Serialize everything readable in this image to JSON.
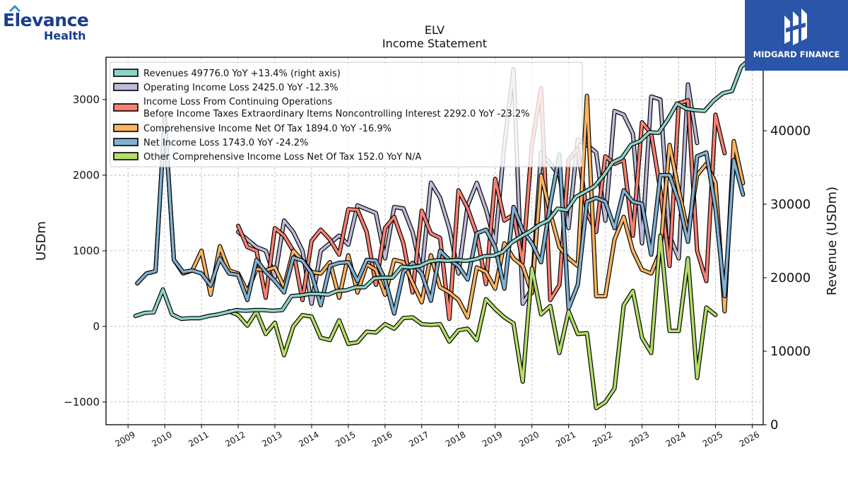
{
  "brand": {
    "company_line1": "Elevance",
    "company_line2": "Health",
    "partner_name": "MIDGARD FINANCE"
  },
  "colors": {
    "revenues": "#8dd3c7",
    "operating": "#bebada",
    "pretax": "#fb8072",
    "comprehensive": "#fdb462",
    "net": "#80b1d3",
    "other_comp": "#b3de69",
    "brand_blue": "#1a3d8f",
    "partner_bg": "#2a55a8"
  },
  "chart_data": {
    "type": "line",
    "title": "ELV",
    "subtitle": "Income Statement",
    "ylabel": "USDm",
    "y2label": "Revenue (USDm)",
    "ylim": [
      -1300,
      3560
    ],
    "y2lim": [
      0,
      50000
    ],
    "xlim": [
      2008.4,
      2026.3
    ],
    "xticks": [
      "2009",
      "2010",
      "2011",
      "2012",
      "2013",
      "2014",
      "2015",
      "2016",
      "2017",
      "2018",
      "2019",
      "2020",
      "2021",
      "2022",
      "2023",
      "2024",
      "2025",
      "2026"
    ],
    "yticks": [
      "-1000",
      "0",
      "1000",
      "2000",
      "3000"
    ],
    "y2ticks": [
      "0",
      "10000",
      "20000",
      "30000",
      "40000"
    ],
    "grid": true,
    "legend_position": "top-left",
    "legend": [
      "Revenues  49776.0 YoY +13.4% (right axis)",
      "Operating Income Loss  2425.0 YoY -12.3%",
      "Income Loss From Continuing Operations\nBefore Income Taxes Extraordinary Items Noncontrolling Interest  2292.0 YoY -23.2%",
      "Comprehensive Income Net Of Tax  1894.0 YoY -16.9%",
      "Net Income Loss  1743.0 YoY -24.2%",
      "Other Comprehensive Income Loss Net Of Tax  152.0 YoY N/A"
    ],
    "series": [
      {
        "key": "revenues",
        "axis": "right",
        "start": 2009.2,
        "step": 0.25,
        "values": [
          14800,
          15200,
          15300,
          18400,
          15000,
          14400,
          14500,
          14500,
          14800,
          15000,
          15300,
          15600,
          15500,
          15600,
          15600,
          15500,
          15600,
          17500,
          17600,
          17800,
          17800,
          17700,
          18200,
          18300,
          18700,
          18700,
          19900,
          20000,
          20000,
          21500,
          21400,
          21600,
          22200,
          22400,
          22300,
          22400,
          22300,
          22500,
          22900,
          23000,
          23500,
          24800,
          25600,
          26300,
          27200,
          27800,
          29400,
          29200,
          31000,
          31700,
          32400,
          33900,
          35700,
          36300,
          38100,
          38600,
          39800,
          39700,
          41500,
          43700,
          43000,
          42800,
          42700,
          44100,
          45100,
          45400,
          48700,
          49776
        ]
      },
      {
        "key": "operating",
        "axis": "left",
        "start": 2012.0,
        "step": 0.25,
        "values": [
          1250,
          1150,
          1050,
          1000,
          650,
          1400,
          1250,
          1000,
          300,
          1000,
          1100,
          1200,
          1080,
          1600,
          1550,
          1500,
          900,
          1580,
          1560,
          1250,
          700,
          1900,
          1700,
          1300,
          700,
          1600,
          1900,
          1550,
          1100,
          2400,
          3400,
          300,
          500,
          2300,
          2150,
          2000,
          1300,
          2470,
          2400,
          2300,
          1400,
          2850,
          2800,
          2550,
          1100,
          3040,
          3000,
          1200,
          900,
          3200,
          2425
        ]
      },
      {
        "key": "pretax",
        "axis": "left",
        "start": 2012.0,
        "step": 0.25,
        "values": [
          1330,
          1050,
          1000,
          380,
          1300,
          1200,
          1000,
          350,
          1130,
          1280,
          1150,
          950,
          1550,
          1540,
          1250,
          550,
          1300,
          1450,
          1100,
          450,
          1530,
          1230,
          1170,
          100,
          1800,
          1560,
          1220,
          560,
          1950,
          1400,
          1480,
          850,
          2400,
          3150,
          350,
          550,
          2200,
          2350,
          1500,
          1250,
          2250,
          2150,
          2200,
          1200,
          2700,
          2550,
          1800,
          800,
          2950,
          2990,
          1000,
          600,
          2800,
          2292
        ]
      },
      {
        "key": "comprehensive",
        "axis": "left",
        "start": 2009.25,
        "step": 0.25,
        "values": [
          570,
          700,
          730,
          2750,
          880,
          700,
          740,
          1000,
          420,
          1060,
          740,
          700,
          460,
          760,
          740,
          780,
          520,
          1000,
          870,
          720,
          700,
          850,
          380,
          940,
          450,
          820,
          750,
          420,
          880,
          850,
          580,
          320,
          940,
          520,
          450,
          350,
          120,
          780,
          720,
          500,
          1100,
          900,
          800,
          440,
          2000,
          1500,
          1050,
          900,
          800,
          3050,
          400,
          400,
          1150,
          1450,
          1000,
          750,
          700,
          1000,
          2400,
          1800,
          1250,
          2000,
          2150,
          1900,
          200,
          2450,
          1894
        ]
      },
      {
        "key": "net",
        "axis": "left",
        "start": 2009.25,
        "step": 0.25,
        "values": [
          570,
          700,
          730,
          2750,
          880,
          720,
          740,
          700,
          540,
          900,
          700,
          680,
          350,
          880,
          720,
          600,
          450,
          910,
          870,
          700,
          280,
          800,
          840,
          850,
          600,
          880,
          870,
          620,
          170,
          720,
          840,
          700,
          340,
          1000,
          880,
          800,
          620,
          1230,
          1280,
          1050,
          500,
          1580,
          1270,
          1100,
          850,
          1620,
          2270,
          240,
          550,
          1650,
          1700,
          1650,
          1300,
          1800,
          1650,
          1620,
          950,
          2000,
          2000,
          1650,
          1120,
          2250,
          2300,
          1560,
          400,
          2200,
          1743
        ]
      },
      {
        "key": "other_comp",
        "axis": "left",
        "start": 2011.75,
        "step": 0.25,
        "values": [
          200,
          150,
          10,
          200,
          -100,
          50,
          -380,
          0,
          150,
          130,
          -150,
          -180,
          80,
          -230,
          -210,
          -70,
          -80,
          30,
          -30,
          110,
          120,
          30,
          20,
          30,
          -200,
          -50,
          -30,
          -180,
          360,
          230,
          120,
          40,
          -730,
          770,
          160,
          270,
          -350,
          200,
          -100,
          -90,
          -1080,
          -1000,
          -820,
          280,
          470,
          -150,
          -350,
          1200,
          -60,
          -60,
          900,
          -680,
          250,
          152
        ]
      }
    ]
  }
}
